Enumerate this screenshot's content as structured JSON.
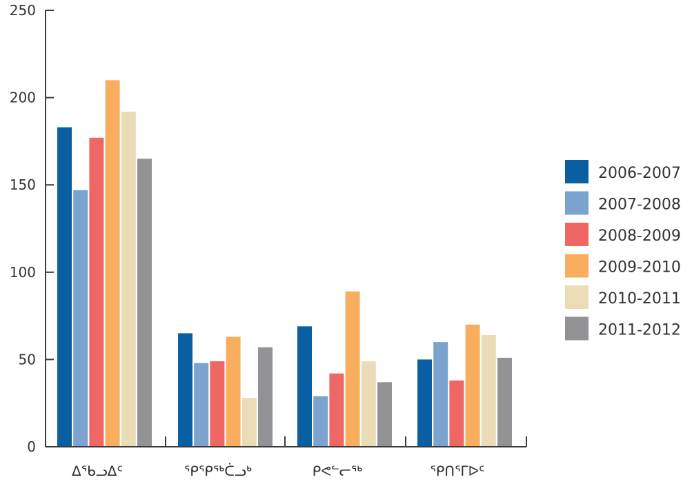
{
  "chart_data": {
    "type": "bar",
    "categories": [
      "ᐃᖃᓗᐃᑦ",
      "ᕿᕿᖅᑖᓗᒃ",
      "ᑭᕙᓪᓕᖅ",
      "ᕿᑎᕐᒥᐅᑦ"
    ],
    "series": [
      {
        "name": "2006-2007",
        "color": "#0a5fa3",
        "values": [
          183,
          65,
          69,
          50
        ]
      },
      {
        "name": "2007-2008",
        "color": "#7aa3cf",
        "values": [
          147,
          48,
          29,
          60
        ]
      },
      {
        "name": "2008-2009",
        "color": "#ef6764",
        "values": [
          177,
          49,
          42,
          38
        ]
      },
      {
        "name": "2009-2010",
        "color": "#f9ad5f",
        "values": [
          210,
          63,
          89,
          70
        ]
      },
      {
        "name": "2010-2011",
        "color": "#ebdcb7",
        "values": [
          192,
          28,
          49,
          64
        ]
      },
      {
        "name": "2011-2012",
        "color": "#939396",
        "values": [
          165,
          57,
          37,
          51
        ]
      }
    ],
    "yticks": [
      0,
      50,
      100,
      150,
      200,
      250
    ],
    "ylim": [
      0,
      250
    ],
    "title": "",
    "xlabel": "",
    "ylabel": "",
    "grid": false,
    "legend_position": "right"
  }
}
